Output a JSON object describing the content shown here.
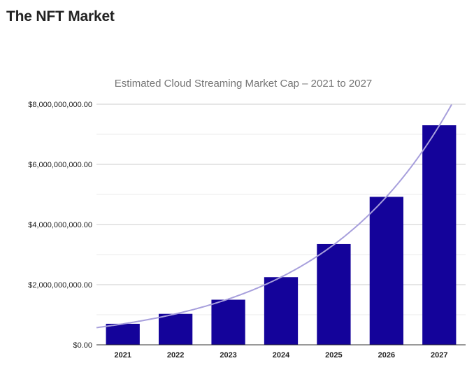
{
  "page": {
    "title": "The NFT Market"
  },
  "chart_data": {
    "type": "bar",
    "title": "Estimated Cloud Streaming Market Cap – 2021 to 2027",
    "xlabel": "",
    "ylabel": "",
    "categories": [
      "2021",
      "2022",
      "2023",
      "2024",
      "2025",
      "2026",
      "2027"
    ],
    "values": [
      700000000,
      1030000000,
      1500000000,
      2250000000,
      3350000000,
      4920000000,
      7300000000
    ],
    "ylim": [
      0,
      8000000000
    ],
    "yticks": [
      0,
      2000000000,
      4000000000,
      6000000000,
      8000000000
    ],
    "ytick_labels": [
      "$0.00",
      "$2,000,000,000.00",
      "$4,000,000,000.00",
      "$6,000,000,000.00",
      "$8,000,000,000.00"
    ],
    "grid": true,
    "trendline": {
      "type": "exponential",
      "visible": true
    },
    "colors": {
      "bar": "#14039a",
      "trendline": "#a79fdc",
      "grid_major": "#cccccc",
      "grid_minor": "#ebebeb",
      "axis": "#333333",
      "title": "#757575",
      "tick_label": "#222222"
    }
  }
}
